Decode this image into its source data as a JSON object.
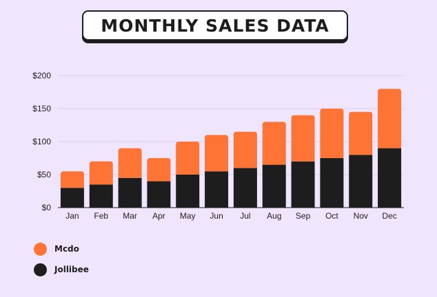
{
  "title": "MONTHLY SALES DATA",
  "chart_data": {
    "type": "bar",
    "stacked": true,
    "categories": [
      "Jan",
      "Feb",
      "Mar",
      "Apr",
      "May",
      "Jun",
      "Jul",
      "Aug",
      "Sep",
      "Oct",
      "Nov",
      "Dec"
    ],
    "series": [
      {
        "name": "Jollibee",
        "color": "#1d1d1d",
        "values": [
          30,
          35,
          45,
          40,
          50,
          55,
          60,
          65,
          70,
          75,
          80,
          90
        ]
      },
      {
        "name": "Mcdo",
        "color": "#fe7434",
        "values": [
          25,
          35,
          45,
          35,
          50,
          55,
          55,
          65,
          70,
          75,
          65,
          90
        ]
      }
    ],
    "y_ticks": [
      "$0",
      "$50",
      "$100",
      "$150",
      "$200"
    ],
    "ylim": [
      0,
      200
    ],
    "grid": true,
    "legend_position": "bottom-left"
  },
  "legend": [
    {
      "label": "Mcdo",
      "color": "#fe7434"
    },
    {
      "label": "Jollibee",
      "color": "#1d1d1d"
    }
  ]
}
